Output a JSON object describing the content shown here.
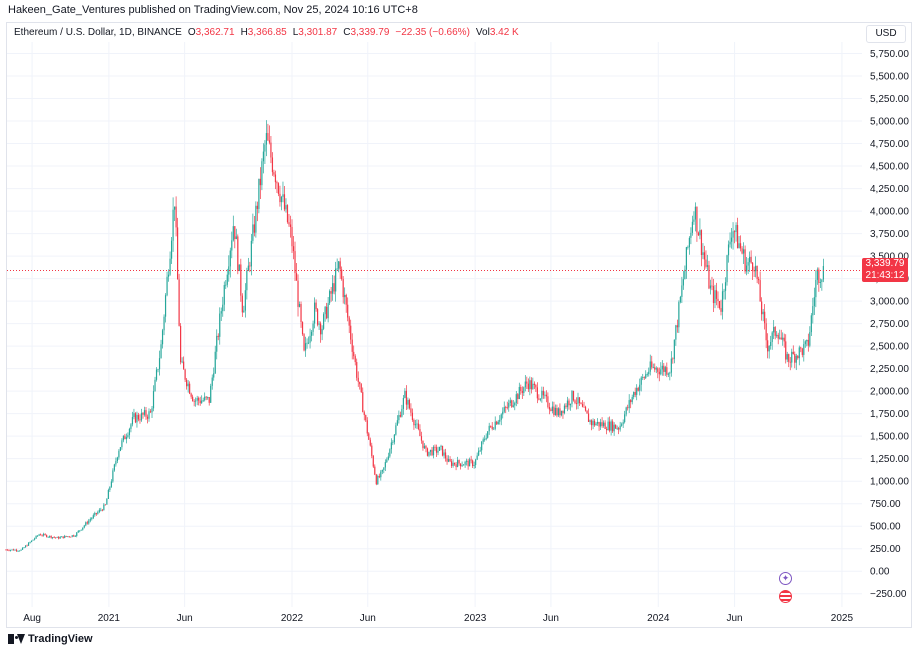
{
  "header": {
    "publish_text": "Hakeen_Gate_Ventures published on TradingView.com, Nov 25, 2024 10:16 UTC+8",
    "symbol": "Ethereum / U.S. Dollar, 1D, BINANCE",
    "open_label": "O",
    "open_value": "3,362.71",
    "high_label": "H",
    "high_value": "3,366.85",
    "low_label": "L",
    "low_value": "3,301.87",
    "close_label": "C",
    "close_value": "3,339.79",
    "change": "−22.35 (−0.66%)",
    "vol_label": "Vol",
    "vol_value": "3.42 K",
    "currency": "USD"
  },
  "price_tag": {
    "price": "3,339.79",
    "countdown": "21:43:12"
  },
  "events": {
    "icon1": "crypto-event-icon",
    "icon2": "us-flag-event-icon"
  },
  "footer": {
    "brand": "TradingView"
  },
  "colors": {
    "up": "#26a69a",
    "down": "#f23645",
    "last_price": "#f23645",
    "grid": "#f0f3fa"
  },
  "chart_data": {
    "type": "line",
    "title": "Ethereum / U.S. Dollar, 1D, BINANCE",
    "xlabel": "",
    "ylabel": "",
    "ylim": [
      -375,
      5900
    ],
    "y_ticks": [
      -250,
      0,
      250,
      500,
      750,
      1000,
      1250,
      1500,
      1750,
      2000,
      2250,
      2500,
      2750,
      3000,
      3250,
      3500,
      3750,
      4000,
      4250,
      4500,
      4750,
      5000,
      5250,
      5500,
      5750
    ],
    "y_tick_labels": [
      "−250.00",
      "0.00",
      "250.00",
      "500.00",
      "750.00",
      "1,000.00",
      "1,250.00",
      "1,500.00",
      "1,750.00",
      "2,000.00",
      "2,250.00",
      "2,500.00",
      "2,750.00",
      "3,000.00",
      "3,250.00",
      "3,500.00",
      "3,750.00",
      "4,000.00",
      "4,250.00",
      "4,500.00",
      "4,750.00",
      "5,000.00",
      "5,250.00",
      "5,500.00",
      "5,750.00"
    ],
    "x_ticks": [
      "2020-08-01",
      "2021-01-01",
      "2021-06-01",
      "2022-01-01",
      "2022-06-01",
      "2023-01-01",
      "2023-06-01",
      "2024-01-01",
      "2024-06-01",
      "2025-01-01"
    ],
    "x_tick_labels": [
      "Aug",
      "2021",
      "Jun",
      "2022",
      "Jun",
      "2023",
      "Jun",
      "2024",
      "Jun",
      "2025"
    ],
    "xlim": [
      "2020-06-10",
      "2025-02-10"
    ],
    "last_price": 3339.79,
    "series": [
      {
        "x": [
          "2020-06-10",
          "2020-07-10",
          "2020-08-15",
          "2020-09-20",
          "2020-10-25",
          "2020-11-25",
          "2020-12-25",
          "2021-01-20",
          "2021-02-20",
          "2021-03-25",
          "2021-04-15",
          "2021-05-12",
          "2021-05-24",
          "2021-06-20",
          "2021-07-20",
          "2021-08-20",
          "2021-09-07",
          "2021-09-25",
          "2021-11-10",
          "2021-11-28",
          "2021-12-31",
          "2022-01-25",
          "2022-02-15",
          "2022-03-01",
          "2022-04-05",
          "2022-05-10",
          "2022-06-18",
          "2022-07-01",
          "2022-08-14",
          "2022-09-25",
          "2022-10-25",
          "2022-11-10",
          "2022-12-31",
          "2023-01-25",
          "2023-04-16",
          "2023-06-15",
          "2023-07-15",
          "2023-08-20",
          "2023-10-15",
          "2023-11-15",
          "2023-12-15",
          "2024-01-25",
          "2024-03-12",
          "2024-04-15",
          "2024-05-05",
          "2024-05-27",
          "2024-06-25",
          "2024-07-10",
          "2024-08-05",
          "2024-08-25",
          "2024-09-15",
          "2024-10-25",
          "2024-11-12",
          "2024-11-25"
        ],
        "values": [
          240,
          235,
          410,
          370,
          400,
          580,
          730,
          1350,
          1700,
          1750,
          2500,
          4150,
          2300,
          1900,
          1900,
          3200,
          3900,
          2900,
          4800,
          4450,
          3700,
          2400,
          2900,
          2700,
          3400,
          2200,
          1000,
          1100,
          1950,
          1320,
          1350,
          1200,
          1200,
          1550,
          2100,
          1750,
          1950,
          1650,
          1600,
          2000,
          2250,
          2250,
          4050,
          3100,
          2950,
          3850,
          3400,
          3450,
          2500,
          2700,
          2350,
          2500,
          3300,
          3339.79
        ]
      }
    ]
  }
}
